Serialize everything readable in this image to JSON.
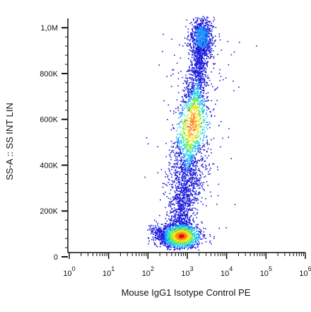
{
  "chart_data": {
    "type": "scatter",
    "subtype": "flow-cytometry-density-dot-plot",
    "xlabel": "Mouse IgG1 Isotype Control PE",
    "ylabel": "SS-A :: SS INT LIN",
    "x_scale": "log",
    "xlim": [
      1,
      1000000
    ],
    "ylim": [
      0,
      1050000
    ],
    "x_ticks": [
      {
        "value": 1,
        "base": "10",
        "exp": "0"
      },
      {
        "value": 10,
        "base": "10",
        "exp": "1"
      },
      {
        "value": 100,
        "base": "10",
        "exp": "2"
      },
      {
        "value": 1000,
        "base": "10",
        "exp": "3"
      },
      {
        "value": 10000,
        "base": "10",
        "exp": "4"
      },
      {
        "value": 100000,
        "base": "10",
        "exp": "5"
      },
      {
        "value": 1000000,
        "base": "10",
        "exp": "6"
      }
    ],
    "y_ticks": [
      {
        "value": 0,
        "label": "0"
      },
      {
        "value": 200000,
        "label": "200K"
      },
      {
        "value": 400000,
        "label": "400K"
      },
      {
        "value": 600000,
        "label": "600K"
      },
      {
        "value": 800000,
        "label": "800K"
      },
      {
        "value": 1000000,
        "label": "1,0M"
      }
    ],
    "populations": [
      {
        "x_center": 700,
        "y_center": 55000,
        "density": "highest"
      },
      {
        "x_center": 1200,
        "y_center": 560000,
        "density": "high"
      },
      {
        "x_center": 2000,
        "y_center": 950000,
        "density": "medium"
      }
    ],
    "color_scale": [
      "#1a1adb",
      "#1f9bff",
      "#23e3e3",
      "#7ff03a",
      "#f5e41c",
      "#ff8a1a",
      "#e01010"
    ],
    "grid": false,
    "legend": "none"
  }
}
